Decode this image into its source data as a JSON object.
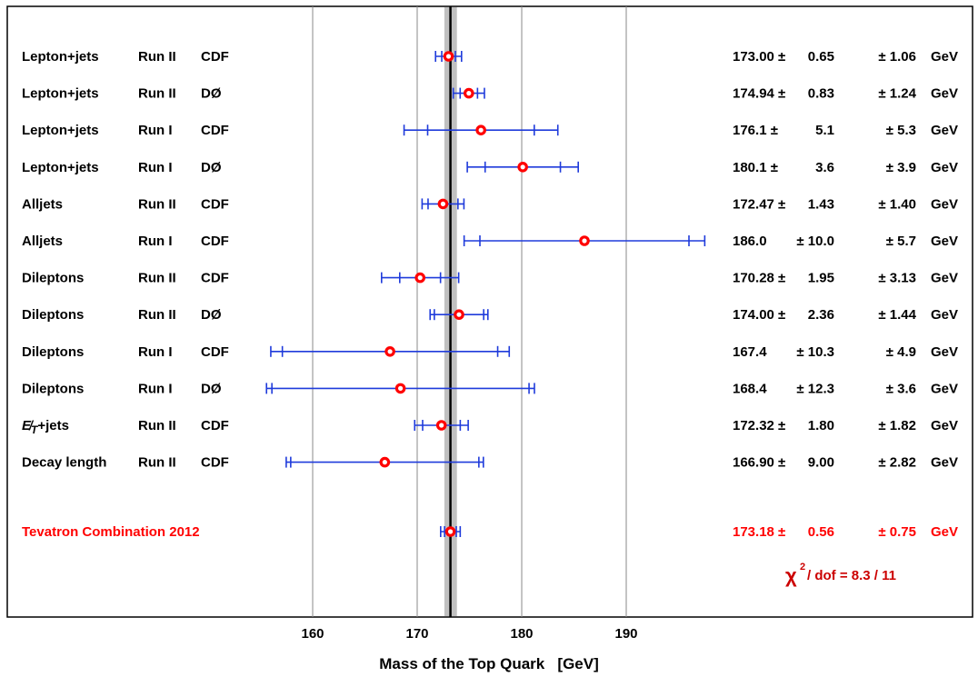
{
  "chart_data": {
    "type": "scatter",
    "xlabel": "Mass of the Top Quark   [GeV]",
    "x_ticks": [
      "160",
      "170",
      "180",
      "190"
    ],
    "xlim": [
      130,
      200
    ],
    "gridlines": [
      160,
      170,
      180,
      190
    ],
    "combination_band": [
      172.6,
      173.8
    ],
    "central_line": 173.18,
    "colors": {
      "marker": "#ff0000",
      "error_bar": "#1f3bdb",
      "combination_text": "#ff0000",
      "chi2_text": "#cc0000",
      "band": "#c0c0c0"
    },
    "measurements": [
      {
        "channel": "Lepton+jets",
        "run": "Run II",
        "experiment": "CDF",
        "value": 173.0,
        "stat": 0.65,
        "syst": 1.06,
        "display": [
          "173.00 ±",
          "0.65",
          "± 1.06",
          "GeV"
        ]
      },
      {
        "channel": "Lepton+jets",
        "run": "Run II",
        "experiment": "DØ",
        "value": 174.94,
        "stat": 0.83,
        "syst": 1.24,
        "display": [
          "174.94 ±",
          "0.83",
          "± 1.24",
          "GeV"
        ]
      },
      {
        "channel": "Lepton+jets",
        "run": "Run I",
        "experiment": "CDF",
        "value": 176.1,
        "stat": 5.1,
        "syst": 5.3,
        "display": [
          "176.1   ±",
          "5.1",
          "± 5.3",
          "GeV"
        ]
      },
      {
        "channel": "Lepton+jets",
        "run": "Run I",
        "experiment": "DØ",
        "value": 180.1,
        "stat": 3.6,
        "syst": 3.9,
        "display": [
          "180.1   ±",
          "3.6",
          "± 3.9",
          "GeV"
        ]
      },
      {
        "channel": "Alljets",
        "run": "Run II",
        "experiment": "CDF",
        "value": 172.47,
        "stat": 1.43,
        "syst": 1.4,
        "display": [
          "172.47 ±",
          "1.43",
          "± 1.40",
          "GeV"
        ]
      },
      {
        "channel": "Alljets",
        "run": "Run I",
        "experiment": "CDF",
        "value": 186.0,
        "stat": 10.0,
        "syst": 5.7,
        "display": [
          "186.0",
          "± 10.0",
          "± 5.7",
          "GeV"
        ]
      },
      {
        "channel": "Dileptons",
        "run": "Run II",
        "experiment": "CDF",
        "value": 170.28,
        "stat": 1.95,
        "syst": 3.13,
        "display": [
          "170.28 ±",
          "1.95",
          "± 3.13",
          "GeV"
        ]
      },
      {
        "channel": "Dileptons",
        "run": "Run II",
        "experiment": "DØ",
        "value": 174.0,
        "stat": 2.36,
        "syst": 1.44,
        "display": [
          "174.00 ±",
          "2.36",
          "± 1.44",
          "GeV"
        ]
      },
      {
        "channel": "Dileptons",
        "run": "Run I",
        "experiment": "CDF",
        "value": 167.4,
        "stat": 10.3,
        "syst": 4.9,
        "display": [
          "167.4",
          "± 10.3",
          "± 4.9",
          "GeV"
        ]
      },
      {
        "channel": "Dileptons",
        "run": "Run I",
        "experiment": "DØ",
        "value": 168.4,
        "stat": 12.3,
        "syst": 3.6,
        "display": [
          "168.4",
          "± 12.3",
          "± 3.6",
          "GeV"
        ]
      },
      {
        "channel": "E̸T+jets",
        "run": "Run II",
        "experiment": "CDF",
        "value": 172.32,
        "stat": 1.8,
        "syst": 1.82,
        "display": [
          "172.32 ±",
          "1.80",
          "± 1.82",
          "GeV"
        ]
      },
      {
        "channel": "Decay length",
        "run": "Run II",
        "experiment": "CDF",
        "value": 166.9,
        "stat": 9.0,
        "syst": 2.82,
        "display": [
          "166.90 ±",
          "9.00",
          "± 2.82",
          "GeV"
        ]
      }
    ],
    "combination": {
      "label": "Tevatron Combination 2012",
      "value": 173.18,
      "stat": 0.56,
      "syst": 0.75,
      "display": [
        "173.18 ±",
        "0.56",
        "± 0.75",
        "GeV"
      ]
    },
    "chi2_label": "/ dof = 8.3 / 11"
  }
}
